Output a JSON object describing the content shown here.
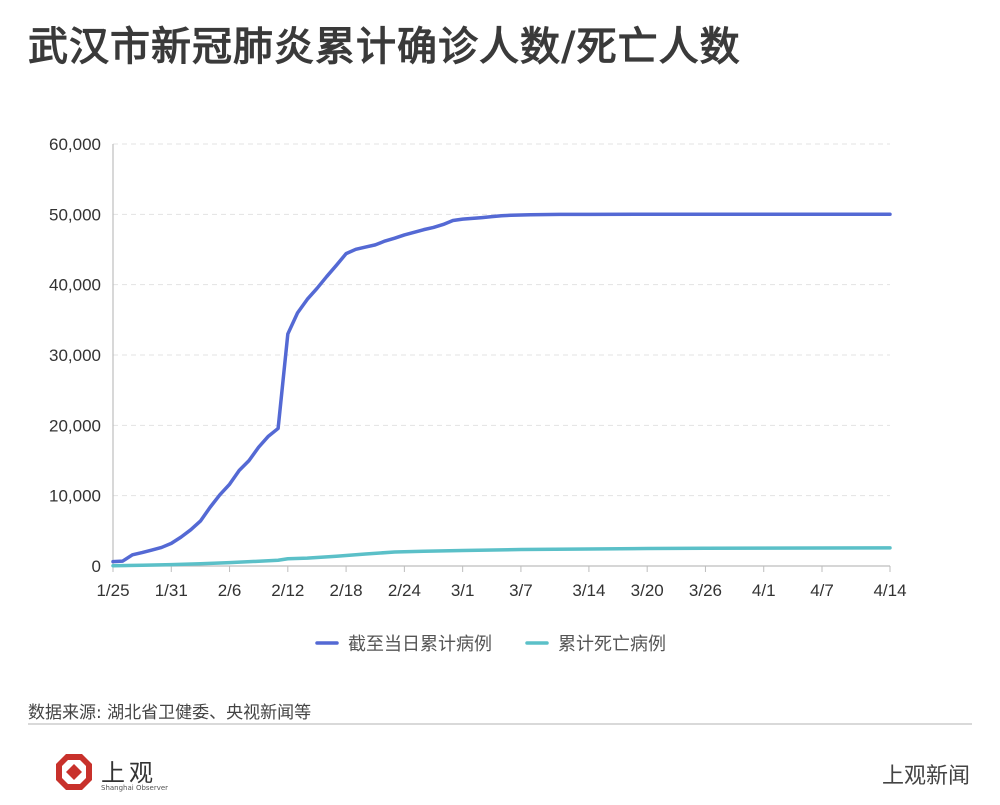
{
  "header": {
    "title": "武汉市新冠肺炎累计确诊人数/死亡人数"
  },
  "footer": {
    "source": "数据来源: 湖北省卫健委、央视新闻等",
    "logo_cn": "上观",
    "logo_en": "Shanghai Observer",
    "brand": "上观新闻"
  },
  "colors": {
    "confirmed": "#5469d4",
    "deaths": "#5bc0c8",
    "grid": "#e3e3e3",
    "axis": "#bdbdbd"
  },
  "chart_data": {
    "type": "line",
    "title": "武汉市新冠肺炎累计确诊人数/死亡人数",
    "xlabel": "",
    "ylabel": "",
    "x_tick_labels": [
      "1/25",
      "1/31",
      "2/6",
      "2/12",
      "2/18",
      "2/24",
      "3/1",
      "3/7",
      "3/14",
      "3/20",
      "3/26",
      "4/1",
      "4/7",
      "4/14"
    ],
    "y_tick_labels": [
      "0",
      "10,000",
      "20,000",
      "30,000",
      "40,000",
      "50,000",
      "60,000"
    ],
    "ylim": [
      0,
      60000
    ],
    "grid": true,
    "legend": "bottom-center",
    "series": [
      {
        "name": "截至当日累计病例",
        "points": [
          [
            "1/25",
            618
          ],
          [
            "1/26",
            698
          ],
          [
            "1/27",
            1590
          ],
          [
            "1/28",
            1905
          ],
          [
            "1/29",
            2261
          ],
          [
            "1/30",
            2639
          ],
          [
            "1/31",
            3215
          ],
          [
            "2/1",
            4109
          ],
          [
            "2/2",
            5142
          ],
          [
            "2/3",
            6384
          ],
          [
            "2/4",
            8351
          ],
          [
            "2/5",
            10117
          ],
          [
            "2/6",
            11618
          ],
          [
            "2/7",
            13603
          ],
          [
            "2/8",
            14982
          ],
          [
            "2/9",
            16902
          ],
          [
            "2/10",
            18454
          ],
          [
            "2/11",
            19558
          ],
          [
            "2/12",
            32994
          ],
          [
            "2/13",
            35991
          ],
          [
            "2/14",
            37914
          ],
          [
            "2/15",
            39462
          ],
          [
            "2/16",
            41152
          ],
          [
            "2/17",
            42752
          ],
          [
            "2/18",
            44412
          ],
          [
            "2/19",
            45027
          ],
          [
            "2/20",
            45346
          ],
          [
            "2/21",
            45660
          ],
          [
            "2/22",
            46201
          ],
          [
            "2/23",
            46607
          ],
          [
            "2/24",
            47071
          ],
          [
            "2/25",
            47441
          ],
          [
            "2/26",
            47824
          ],
          [
            "2/27",
            48137
          ],
          [
            "2/28",
            48557
          ],
          [
            "2/29",
            49122
          ],
          [
            "3/1",
            49315
          ],
          [
            "3/2",
            49426
          ],
          [
            "3/3",
            49540
          ],
          [
            "3/4",
            49671
          ],
          [
            "3/5",
            49797
          ],
          [
            "3/6",
            49871
          ],
          [
            "3/7",
            49912
          ],
          [
            "3/8",
            49948
          ],
          [
            "3/9",
            49965
          ],
          [
            "3/10",
            49978
          ],
          [
            "3/11",
            49986
          ],
          [
            "3/12",
            49991
          ],
          [
            "3/13",
            49995
          ],
          [
            "3/14",
            49999
          ],
          [
            "3/20",
            50005
          ],
          [
            "3/26",
            50006
          ],
          [
            "4/1",
            50007
          ],
          [
            "4/7",
            50008
          ],
          [
            "4/14",
            50008
          ]
        ]
      },
      {
        "name": "累计死亡病例",
        "points": [
          [
            "1/25",
            38
          ],
          [
            "1/28",
            104
          ],
          [
            "1/31",
            192
          ],
          [
            "2/3",
            313
          ],
          [
            "2/6",
            478
          ],
          [
            "2/9",
            681
          ],
          [
            "2/11",
            820
          ],
          [
            "2/12",
            1036
          ],
          [
            "2/14",
            1123
          ],
          [
            "2/17",
            1381
          ],
          [
            "2/20",
            1709
          ],
          [
            "2/23",
            1987
          ],
          [
            "2/26",
            2104
          ],
          [
            "3/1",
            2195
          ],
          [
            "3/7",
            2349
          ],
          [
            "3/14",
            2423
          ],
          [
            "3/20",
            2480
          ],
          [
            "3/26",
            2524
          ],
          [
            "4/1",
            2548
          ],
          [
            "4/7",
            2563
          ],
          [
            "4/14",
            2579
          ]
        ]
      }
    ]
  }
}
